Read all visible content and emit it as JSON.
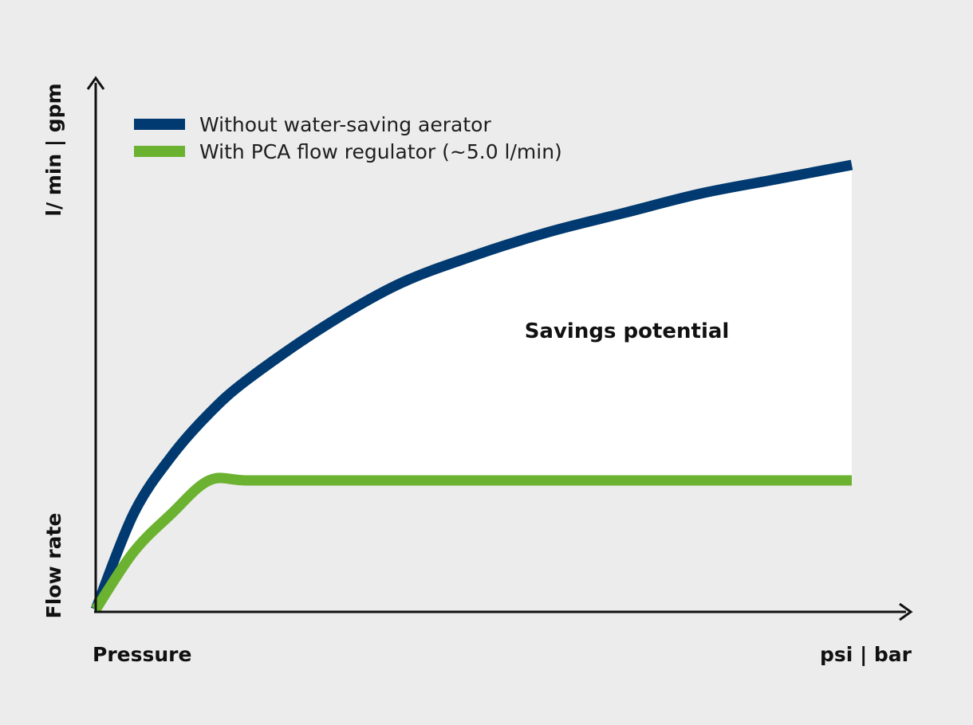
{
  "chart_data": {
    "type": "line",
    "title": "",
    "xlabel": "Pressure",
    "xunit": "psi | bar",
    "ylabel": "Flow rate",
    "yunit": "l/ min | gpm",
    "annotation": "Savings potential",
    "legend_position": "top-left",
    "grid": false,
    "x": [
      0,
      0.05,
      0.1,
      0.15,
      0.2,
      0.3,
      0.4,
      0.5,
      0.6,
      0.7,
      0.8,
      0.9,
      1.0
    ],
    "series": [
      {
        "name": "Without water-saving aerator",
        "color": "#003a70",
        "values": [
          0.0,
          0.2,
          0.32,
          0.41,
          0.48,
          0.59,
          0.68,
          0.74,
          0.79,
          0.83,
          0.87,
          0.9,
          0.93
        ]
      },
      {
        "name": "With PCA flow regulator (~5.0 l/min)",
        "color": "#6ab22f",
        "values": [
          0.0,
          0.12,
          0.2,
          0.27,
          0.27,
          0.27,
          0.27,
          0.27,
          0.27,
          0.27,
          0.27,
          0.27,
          0.27
        ]
      }
    ]
  }
}
